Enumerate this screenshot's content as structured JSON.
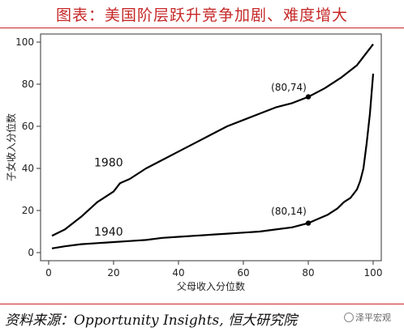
{
  "header": {
    "title": "图表：美国阶层跃升竞争加剧、难度增大"
  },
  "footer": {
    "source": "资料来源：Opportunity Insights, 恒大研究院",
    "watermark": "泽平宏观"
  },
  "chart_data": {
    "type": "line",
    "xlabel": "父母收入分位数",
    "ylabel": "子女收入分位数",
    "xlim": [
      0,
      100
    ],
    "ylim": [
      0,
      100
    ],
    "xticks": [
      0,
      20,
      40,
      60,
      80,
      100
    ],
    "yticks": [
      0,
      20,
      40,
      60,
      80,
      100
    ],
    "grid": false,
    "series": [
      {
        "name": "1980",
        "color": "#000000",
        "x": [
          1,
          5,
          10,
          15,
          20,
          22,
          25,
          30,
          35,
          40,
          45,
          50,
          55,
          60,
          65,
          70,
          75,
          80,
          85,
          90,
          95,
          100
        ],
        "y": [
          8,
          11,
          17,
          24,
          29,
          33,
          35,
          40,
          44,
          48,
          52,
          56,
          60,
          63,
          66,
          69,
          71,
          74,
          78,
          83,
          89,
          99
        ]
      },
      {
        "name": "1940",
        "color": "#000000",
        "x": [
          1,
          5,
          10,
          15,
          20,
          25,
          30,
          35,
          40,
          45,
          50,
          55,
          60,
          65,
          70,
          75,
          80,
          83,
          86,
          89,
          91,
          93,
          95,
          96,
          97,
          98,
          99,
          100
        ],
        "y": [
          2,
          3,
          4,
          4.5,
          5,
          5.5,
          6,
          7,
          7.5,
          8,
          8.5,
          9,
          9.5,
          10,
          11,
          12,
          14,
          16,
          18,
          21,
          24,
          26,
          30,
          34,
          40,
          52,
          66,
          85
        ]
      }
    ],
    "annotations": [
      {
        "text": "1980",
        "x": 14,
        "y": 41
      },
      {
        "text": "1940",
        "x": 14,
        "y": 8
      },
      {
        "text": "(80,74)",
        "x": 74,
        "y": 77,
        "point": [
          80,
          74
        ]
      },
      {
        "text": "(80,14)",
        "x": 74,
        "y": 18,
        "point": [
          80,
          14
        ]
      }
    ]
  }
}
